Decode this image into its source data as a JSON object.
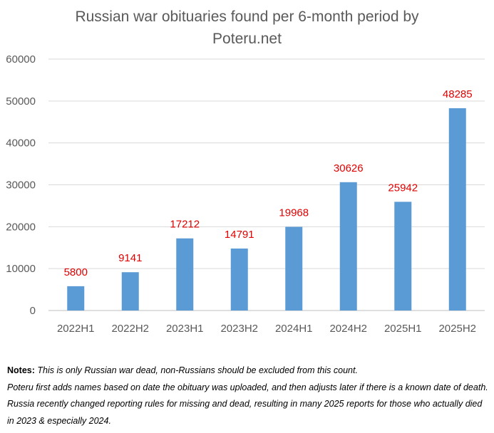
{
  "chart_data": {
    "type": "bar",
    "title": "Russian war obituaries found per 6-month period by Poteru.net",
    "title_lines": [
      "Russian war obituaries found per 6-month period by",
      "Poteru.net"
    ],
    "categories": [
      "2022H1",
      "2022H2",
      "2023H1",
      "2023H2",
      "2024H1",
      "2024H2",
      "2025H1",
      "2025H2"
    ],
    "values": [
      5800,
      9141,
      17212,
      14791,
      19968,
      30626,
      25942,
      48285
    ],
    "data_labels": [
      "5800",
      "9141",
      "17212",
      "14791",
      "19968",
      "30626",
      "25942",
      "48285"
    ],
    "ylim": [
      0,
      60000
    ],
    "yticks": [
      0,
      10000,
      20000,
      30000,
      40000,
      50000,
      60000
    ],
    "grid": true,
    "xlabel": "",
    "ylabel": "",
    "bar_color": "#5b9bd5",
    "label_color": "#e00000"
  },
  "notes": {
    "heading": "Notes:",
    "line1": "This is only Russian war dead, non-Russians should be excluded from this count.",
    "line2": "Poteru first adds names based on date the obituary was uploaded, and then adjusts later if there is a known date of death. Russia recently changed reporting rules for missing and dead, resulting in many 2025 reports for those who actually died in 2023 & especially 2024."
  }
}
